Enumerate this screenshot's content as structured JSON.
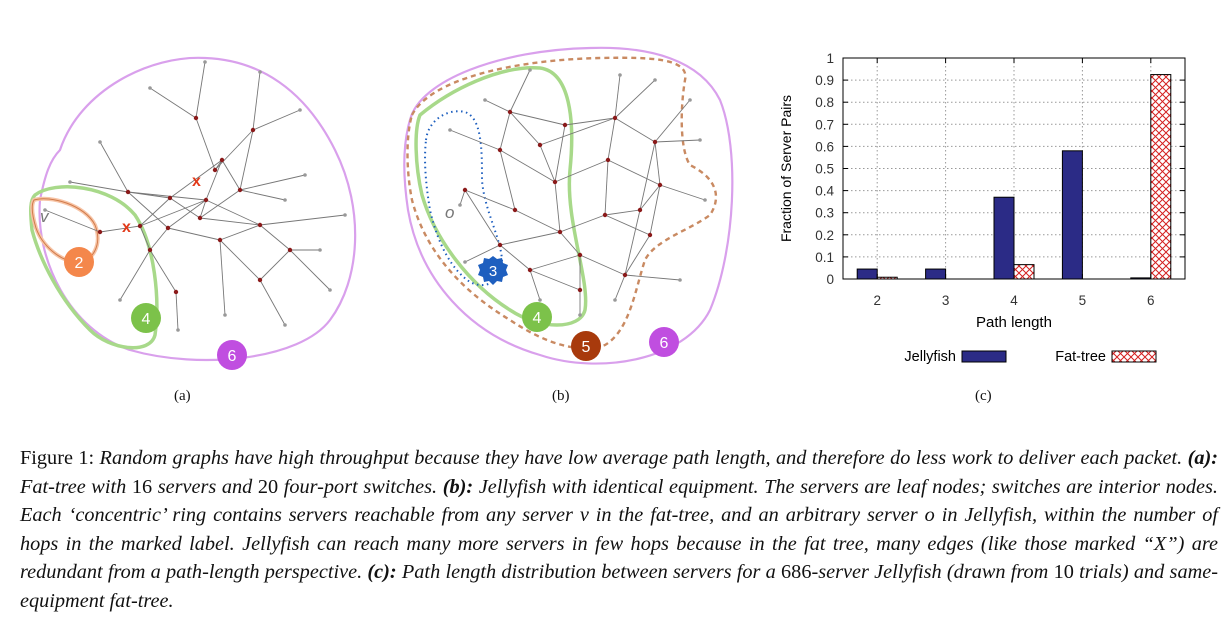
{
  "panels": {
    "a": {
      "label": "(a)",
      "hop_labels": [
        "2",
        "4",
        "6"
      ],
      "server_label": "v",
      "edge_marker": "x"
    },
    "b": {
      "label": "(b)",
      "hop_labels": [
        "3",
        "4",
        "5",
        "6"
      ],
      "server_label": "o"
    },
    "c": {
      "label": "(c)"
    }
  },
  "colors": {
    "hop2": "#f4874b",
    "hop3": "#1e5fbf",
    "hop4": "#7cc24a",
    "hop5": "#a83a0c",
    "hop6": "#c04ee0",
    "jellyfish": "#2b2b86",
    "fattree": "#d42020"
  },
  "chart_data": {
    "type": "bar",
    "categories": [
      "2",
      "3",
      "4",
      "5",
      "6"
    ],
    "series": [
      {
        "name": "Jellyfish",
        "values": [
          0.045,
          0.045,
          0.37,
          0.58,
          0.005
        ]
      },
      {
        "name": "Fat-tree",
        "values": [
          0.008,
          0.0,
          0.065,
          0.0,
          0.925
        ]
      }
    ],
    "xlabel": "Path length",
    "ylabel": "Fraction of Server Pairs",
    "ylim": [
      0,
      1
    ],
    "yticks": [
      "0",
      "0.1",
      "0.2",
      "0.3",
      "0.4",
      "0.5",
      "0.6",
      "0.7",
      "0.8",
      "0.9",
      "1"
    ],
    "grid": true,
    "legend": "bottom"
  },
  "caption": {
    "fig_label": "Figure 1:",
    "intro": " Random graphs have high throughput because they have low average path length, and therefore do less work to deliver each packet. ",
    "a_label": "(a):",
    "a_text": " Fat-tree with ",
    "a_servers": "16",
    "a_mid": " servers and ",
    "a_switches": "20",
    "a_end": " four-port switches. ",
    "b_label": "(b):",
    "b_text": " Jellyfish with identical equipment. The servers are leaf nodes; switches are interior nodes. Each ‘concentric’ ring contains servers reachable from any server v in the fat-tree, and an arbitrary server o in Jellyfish, within the number of hops in the marked label. Jellyfish can reach many more servers in few hops because in the fat tree, many edges (like those marked “X”) are redundant from a path-length perspective. ",
    "c_label": "(c):",
    "c_text": " Path length distribution between servers for a ",
    "c_servers": "686",
    "c_mid": "-server Jellyfish (drawn from ",
    "c_trials": "10",
    "c_end": " trials) and same-equipment fat-tree."
  }
}
